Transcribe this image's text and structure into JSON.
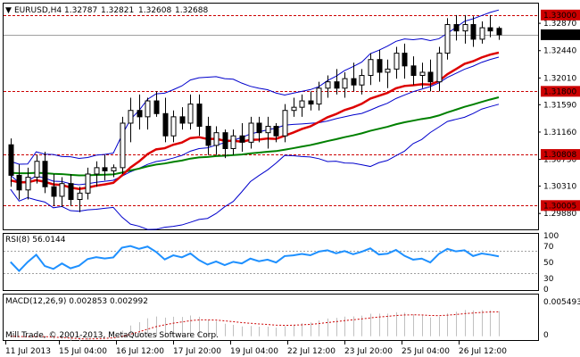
{
  "header": {
    "symbol": "EURUSD,H4",
    "ohlc": [
      "1.32787",
      "1.32821",
      "1.32608",
      "1.32688"
    ]
  },
  "price_axis": {
    "ticks": [
      "1.32870",
      "1.32440",
      "1.32010",
      "1.31590",
      "1.31160",
      "1.30730",
      "1.30310",
      "1.29880"
    ],
    "levels": [
      {
        "price": "1.33000",
        "value": 1.33
      },
      {
        "price": "1.31800",
        "value": 1.318
      },
      {
        "price": "1.30808",
        "value": 1.30808
      },
      {
        "price": "1.30005",
        "value": 1.30005
      }
    ],
    "current_price": "1.32688",
    "ylim": [
      1.2963,
      1.3318
    ]
  },
  "rsi": {
    "label": "RSI(8) 56.0144",
    "ticks": [
      "100",
      "70",
      "50",
      "30",
      "0"
    ],
    "levels": [
      70,
      30
    ]
  },
  "macd": {
    "label": "MACD(12,26,9) 0.002853 0.002992",
    "ticks": [
      "0.005493",
      "0"
    ],
    "ylim": [
      -0.0005,
      0.0055
    ]
  },
  "copyright": "Mill Trade, © 2001-2013, MetaQuotes Software Corp.",
  "time_axis": {
    "labels": [
      "11 Jul 2013",
      "15 Jul 04:00",
      "16 Jul 12:00",
      "17 Jul 20:00",
      "19 Jul 04:00",
      "22 Jul 12:00",
      "23 Jul 20:00",
      "25 Jul 04:00",
      "26 Jul 12:00"
    ]
  },
  "colors": {
    "candle_body": "#000000",
    "level_line": "#cc0000",
    "bollinger": "#0000cc",
    "ma_fast": "#dd0000",
    "ma_slow": "#008000",
    "rsi_line": "#1e90ff",
    "macd_hist": "#c0c0c0",
    "macd_signal": "#cc0000",
    "price_tag": "#000000",
    "level_tag": "#cc0000"
  },
  "chart_data": {
    "type": "candlestick",
    "symbol": "EURUSD",
    "timeframe": "H4",
    "candles": [
      [
        1.3096,
        1.3106,
        1.303,
        1.3048
      ],
      [
        1.3048,
        1.3065,
        1.301,
        1.3025
      ],
      [
        1.3025,
        1.306,
        1.301,
        1.3045
      ],
      [
        1.3045,
        1.308,
        1.3035,
        1.307
      ],
      [
        1.307,
        1.3085,
        1.302,
        1.303
      ],
      [
        1.303,
        1.305,
        1.3,
        1.3015
      ],
      [
        1.3015,
        1.3045,
        1.2998,
        1.3035
      ],
      [
        1.3035,
        1.305,
        1.3,
        1.301
      ],
      [
        1.301,
        1.303,
        1.299,
        1.302
      ],
      [
        1.302,
        1.306,
        1.301,
        1.305
      ],
      [
        1.305,
        1.307,
        1.303,
        1.306
      ],
      [
        1.306,
        1.308,
        1.304,
        1.3055
      ],
      [
        1.3055,
        1.3065,
        1.3045,
        1.306
      ],
      [
        1.306,
        1.314,
        1.305,
        1.313
      ],
      [
        1.313,
        1.317,
        1.31,
        1.315
      ],
      [
        1.315,
        1.3175,
        1.312,
        1.314
      ],
      [
        1.314,
        1.317,
        1.312,
        1.3165
      ],
      [
        1.3165,
        1.318,
        1.314,
        1.3145
      ],
      [
        1.3145,
        1.317,
        1.31,
        1.311
      ],
      [
        1.311,
        1.315,
        1.31,
        1.314
      ],
      [
        1.314,
        1.3155,
        1.312,
        1.313
      ],
      [
        1.313,
        1.3175,
        1.312,
        1.316
      ],
      [
        1.316,
        1.3175,
        1.311,
        1.3125
      ],
      [
        1.3125,
        1.314,
        1.308,
        1.3095
      ],
      [
        1.3095,
        1.3125,
        1.308,
        1.3115
      ],
      [
        1.3115,
        1.312,
        1.3075,
        1.309
      ],
      [
        1.309,
        1.312,
        1.308,
        1.311
      ],
      [
        1.311,
        1.313,
        1.3085,
        1.31
      ],
      [
        1.31,
        1.314,
        1.309,
        1.313
      ],
      [
        1.313,
        1.314,
        1.31,
        1.3115
      ],
      [
        1.3115,
        1.314,
        1.309,
        1.3125
      ],
      [
        1.3125,
        1.313,
        1.31,
        1.311
      ],
      [
        1.311,
        1.316,
        1.31,
        1.315
      ],
      [
        1.315,
        1.317,
        1.314,
        1.3155
      ],
      [
        1.3155,
        1.3175,
        1.314,
        1.3165
      ],
      [
        1.3165,
        1.318,
        1.315,
        1.316
      ],
      [
        1.316,
        1.3195,
        1.315,
        1.3185
      ],
      [
        1.3185,
        1.3205,
        1.317,
        1.3195
      ],
      [
        1.3195,
        1.3215,
        1.3175,
        1.3185
      ],
      [
        1.3185,
        1.321,
        1.317,
        1.32
      ],
      [
        1.32,
        1.3225,
        1.318,
        1.319
      ],
      [
        1.319,
        1.3215,
        1.3175,
        1.3205
      ],
      [
        1.3205,
        1.324,
        1.319,
        1.323
      ],
      [
        1.323,
        1.3245,
        1.3195,
        1.321
      ],
      [
        1.321,
        1.323,
        1.3185,
        1.3215
      ],
      [
        1.3215,
        1.325,
        1.32,
        1.324
      ],
      [
        1.324,
        1.3255,
        1.32,
        1.322
      ],
      [
        1.322,
        1.3235,
        1.319,
        1.3205
      ],
      [
        1.3205,
        1.3225,
        1.3185,
        1.321
      ],
      [
        1.321,
        1.323,
        1.318,
        1.3195
      ],
      [
        1.3195,
        1.325,
        1.318,
        1.324
      ],
      [
        1.324,
        1.3295,
        1.323,
        1.3285
      ],
      [
        1.3285,
        1.33,
        1.326,
        1.3275
      ],
      [
        1.3275,
        1.33,
        1.3255,
        1.3285
      ],
      [
        1.3285,
        1.3298,
        1.325,
        1.3262
      ],
      [
        1.3262,
        1.329,
        1.3255,
        1.328
      ],
      [
        1.328,
        1.33,
        1.3265,
        1.3275
      ],
      [
        1.3279,
        1.3282,
        1.3261,
        1.3269
      ]
    ],
    "indicators": [
      "Bollinger Bands",
      "Moving Average (fast, red)",
      "Moving Average (slow, green)"
    ]
  }
}
